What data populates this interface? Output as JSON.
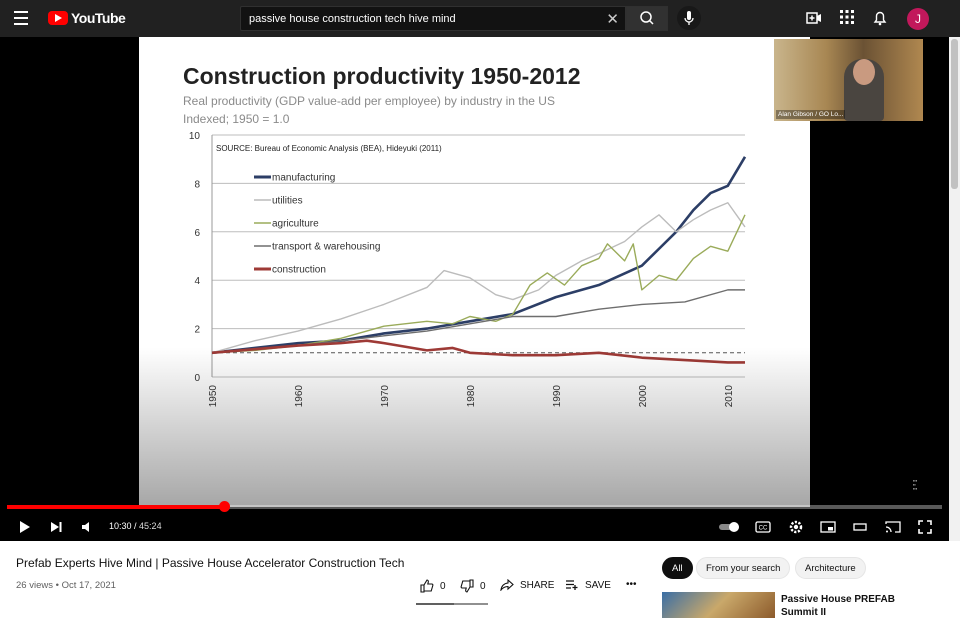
{
  "topbar": {
    "logo_text": "YouTube",
    "search_value": "passive house construction tech hive mind",
    "avatar_initial": "J"
  },
  "slide": {
    "title": "Construction productivity 1950-2012",
    "subtitle_1": "Real productivity (GDP value-add per employee) by industry in the US",
    "subtitle_2": "Indexed; 1950 = 1.0",
    "source": "SOURCE: Bureau of Economic Analysis (BEA), Hideyuki (2011)"
  },
  "chart_data": {
    "type": "line",
    "title": "Construction productivity 1950-2012",
    "subtitle": "Real productivity (GDP value-add per employee) by industry in the US; Indexed; 1950 = 1.0",
    "xlabel": "",
    "ylabel": "",
    "xlim": [
      1950,
      2012
    ],
    "ylim": [
      0,
      10
    ],
    "yticks": [
      0,
      2,
      4,
      6,
      8,
      10
    ],
    "xticks": [
      1950,
      1960,
      1970,
      1980,
      1990,
      2000,
      2010
    ],
    "reference_line": 1.0,
    "legend_position": "top-left",
    "series": [
      {
        "name": "manufacturing",
        "color": "#2c3e66",
        "x": [
          1950,
          1955,
          1960,
          1965,
          1970,
          1975,
          1980,
          1985,
          1990,
          1995,
          2000,
          2002,
          2004,
          2006,
          2008,
          2010,
          2012
        ],
        "values": [
          1.0,
          1.2,
          1.4,
          1.5,
          1.8,
          2.0,
          2.3,
          2.6,
          3.3,
          3.8,
          4.6,
          5.3,
          6.0,
          6.9,
          7.6,
          7.9,
          9.1
        ]
      },
      {
        "name": "utilities",
        "color": "#bcbcbc",
        "x": [
          1950,
          1955,
          1960,
          1965,
          1970,
          1975,
          1977,
          1980,
          1983,
          1985,
          1988,
          1990,
          1993,
          1995,
          1998,
          2000,
          2002,
          2004,
          2006,
          2008,
          2010,
          2012
        ],
        "values": [
          1.0,
          1.5,
          1.9,
          2.4,
          3.0,
          3.7,
          4.4,
          4.1,
          3.4,
          3.2,
          3.6,
          4.2,
          4.8,
          5.1,
          5.6,
          6.2,
          6.7,
          6.0,
          6.5,
          6.9,
          7.2,
          6.2
        ]
      },
      {
        "name": "agriculture",
        "color": "#9aab5a",
        "x": [
          1950,
          1955,
          1960,
          1965,
          1970,
          1975,
          1978,
          1980,
          1983,
          1985,
          1987,
          1989,
          1991,
          1993,
          1995,
          1996,
          1998,
          1999,
          2000,
          2002,
          2004,
          2006,
          2008,
          2010,
          2012
        ],
        "values": [
          1.0,
          1.1,
          1.3,
          1.6,
          2.1,
          2.3,
          2.2,
          2.5,
          2.3,
          2.6,
          3.8,
          4.3,
          3.8,
          4.6,
          4.9,
          5.5,
          4.8,
          5.5,
          3.6,
          4.2,
          4.0,
          4.9,
          5.4,
          5.2,
          6.7
        ]
      },
      {
        "name": "transport & warehousing",
        "color": "#6e6e6e",
        "x": [
          1950,
          1955,
          1960,
          1965,
          1970,
          1975,
          1980,
          1985,
          1990,
          1995,
          2000,
          2005,
          2010,
          2012
        ],
        "values": [
          1.0,
          1.15,
          1.3,
          1.5,
          1.7,
          1.9,
          2.2,
          2.5,
          2.5,
          2.8,
          3.0,
          3.1,
          3.6,
          3.6
        ]
      },
      {
        "name": "construction",
        "color": "#9e3a36",
        "x": [
          1950,
          1955,
          1960,
          1965,
          1968,
          1970,
          1975,
          1978,
          1980,
          1985,
          1990,
          1995,
          2000,
          2005,
          2010,
          2012
        ],
        "values": [
          1.0,
          1.15,
          1.3,
          1.4,
          1.5,
          1.4,
          1.1,
          1.2,
          1.0,
          0.9,
          0.9,
          1.0,
          0.8,
          0.7,
          0.6,
          0.6
        ]
      }
    ]
  },
  "camera": {
    "label": "Alan Gibson / GO Lo..."
  },
  "player": {
    "progress_fraction": 0.232,
    "current_time": "10:30",
    "duration": "45:24"
  },
  "video": {
    "title": "Prefab Experts Hive Mind | Passive House Accelerator Construction Tech",
    "meta": "26 views • Oct 17, 2021",
    "like_count": "0",
    "dislike_count": "0",
    "share_label": "SHARE",
    "save_label": "SAVE",
    "more_label": "•••"
  },
  "chips": [
    "All",
    "From your search",
    "Architecture"
  ],
  "recommendation": {
    "title": "Passive House PREFAB Summit II"
  }
}
